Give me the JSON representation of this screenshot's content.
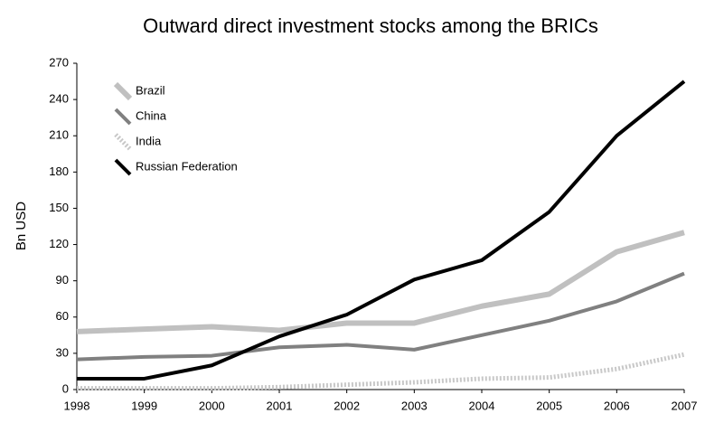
{
  "chart_data": {
    "type": "line",
    "title": "Outward direct investment stocks among the BRICs",
    "y_label": "Bn USD",
    "categories": [
      "1998",
      "1999",
      "2000",
      "2001",
      "2002",
      "2003",
      "2004",
      "2005",
      "2006",
      "2007"
    ],
    "series": [
      {
        "name": "Brazil",
        "color": "#c0c0c0",
        "values": [
          48,
          50,
          52,
          49,
          55,
          55,
          69,
          79,
          114,
          130
        ]
      },
      {
        "name": "China",
        "color": "#808080",
        "values": [
          25,
          27,
          28,
          35,
          37,
          33,
          45,
          57,
          73,
          96
        ]
      },
      {
        "name": "India",
        "color": "#c8c8c8",
        "values": [
          1,
          1,
          1,
          2,
          4,
          6,
          9,
          10,
          17,
          29
        ]
      },
      {
        "name": "Russian Federation",
        "color": "#000000",
        "values": [
          9,
          9,
          20,
          44,
          62,
          91,
          107,
          147,
          210,
          255
        ]
      }
    ],
    "ylim": [
      0,
      270
    ],
    "yticks": [
      0,
      30,
      60,
      90,
      120,
      150,
      180,
      210,
      240,
      270
    ],
    "legend": "upper left"
  }
}
